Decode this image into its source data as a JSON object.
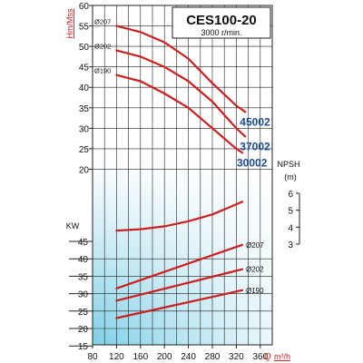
{
  "chart_data": [
    {
      "type": "line",
      "name": "head",
      "title": "CES100-20",
      "subtitle": "3000 r/min.",
      "ylabel": "Hm/Mss",
      "xlabel": "Q m³/h",
      "ylim": [
        15,
        60
      ],
      "yticks": [
        20,
        25,
        30,
        35,
        40,
        45,
        50,
        55,
        60
      ],
      "series": [
        {
          "name": "45002",
          "label": "Ø207",
          "color": "#cc1f1f",
          "points": [
            [
              120,
              55
            ],
            [
              160,
              53.5
            ],
            [
              200,
              51
            ],
            [
              240,
              47
            ],
            [
              280,
              41
            ],
            [
              320,
              35.5
            ],
            [
              335,
              34
            ]
          ]
        },
        {
          "name": "37002",
          "label": "Ø202",
          "color": "#cc1f1f",
          "points": [
            [
              120,
              49
            ],
            [
              160,
              47.5
            ],
            [
              200,
              45
            ],
            [
              240,
              41.5
            ],
            [
              280,
              36.5
            ],
            [
              320,
              30
            ],
            [
              335,
              28
            ]
          ]
        },
        {
          "name": "30002",
          "label": "Ø190",
          "color": "#cc1f1f",
          "points": [
            [
              120,
              43
            ],
            [
              160,
              41.5
            ],
            [
              200,
              38.5
            ],
            [
              240,
              35
            ],
            [
              280,
              30
            ],
            [
              320,
              25
            ],
            [
              330,
              24
            ]
          ]
        }
      ]
    },
    {
      "type": "line",
      "name": "npsh",
      "ylabel": "NPSH",
      "yunit": "(m)",
      "ylim": [
        3,
        6
      ],
      "yticks": [
        3,
        4,
        5,
        6
      ],
      "series": [
        {
          "name": "NPSH",
          "color": "#cc1f1f",
          "points": [
            [
              120,
              3.8
            ],
            [
              160,
              3.88
            ],
            [
              200,
              4.05
            ],
            [
              240,
              4.35
            ],
            [
              280,
              4.75
            ],
            [
              320,
              5.35
            ],
            [
              330,
              5.5
            ]
          ]
        }
      ]
    },
    {
      "type": "line",
      "name": "power",
      "ylabel": "KW",
      "ylim": [
        15,
        45
      ],
      "yticks": [
        15,
        20,
        25,
        30,
        35,
        40,
        45
      ],
      "series": [
        {
          "name": "Ø207",
          "color": "#cc1f1f",
          "points": [
            [
              120,
              31.5
            ],
            [
              330,
              44
            ]
          ]
        },
        {
          "name": "Ø202",
          "color": "#cc1f1f",
          "points": [
            [
              120,
              28
            ],
            [
              330,
              37
            ]
          ]
        },
        {
          "name": "Ø190",
          "color": "#cc1f1f",
          "points": [
            [
              120,
              23
            ],
            [
              330,
              31
            ]
          ]
        }
      ]
    }
  ],
  "x_axis": {
    "label_q": "Q",
    "label_unit": "m³/h",
    "xlim": [
      80,
      380
    ],
    "ticks": [
      80,
      120,
      160,
      200,
      240,
      280,
      320,
      360
    ]
  },
  "colors": {
    "curve": "#cc1f1f",
    "model_label": "#1a4f9c",
    "axis_title": "#cc1f1f",
    "gradient_top": "#ffffff",
    "gradient_bottom": "#7ecfe6"
  }
}
